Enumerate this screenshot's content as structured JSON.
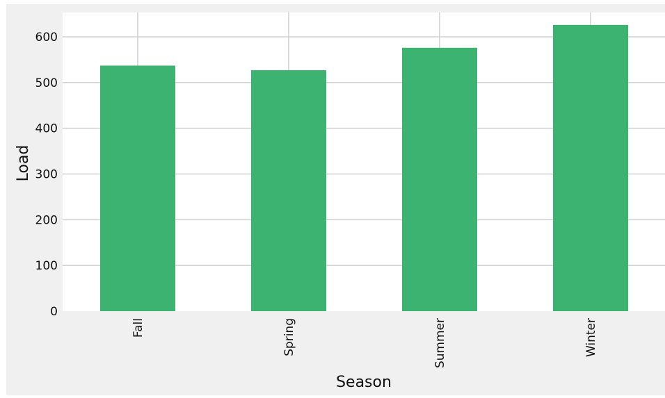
{
  "chart_data": {
    "type": "bar",
    "title": "",
    "xlabel": "Season",
    "ylabel": "Load",
    "categories": [
      "Fall",
      "Spring",
      "Summer",
      "Winter"
    ],
    "values": [
      537,
      527,
      576,
      626
    ],
    "ylim": [
      0,
      650
    ],
    "yticks": [
      0,
      100,
      200,
      300,
      400,
      500,
      600
    ],
    "grid": true,
    "legend": "none",
    "colors": {
      "bar": "#3cb371",
      "plot_background": "#ffffff",
      "figure_background": "#f0f0f0",
      "grid": "#cfcfcf"
    }
  }
}
